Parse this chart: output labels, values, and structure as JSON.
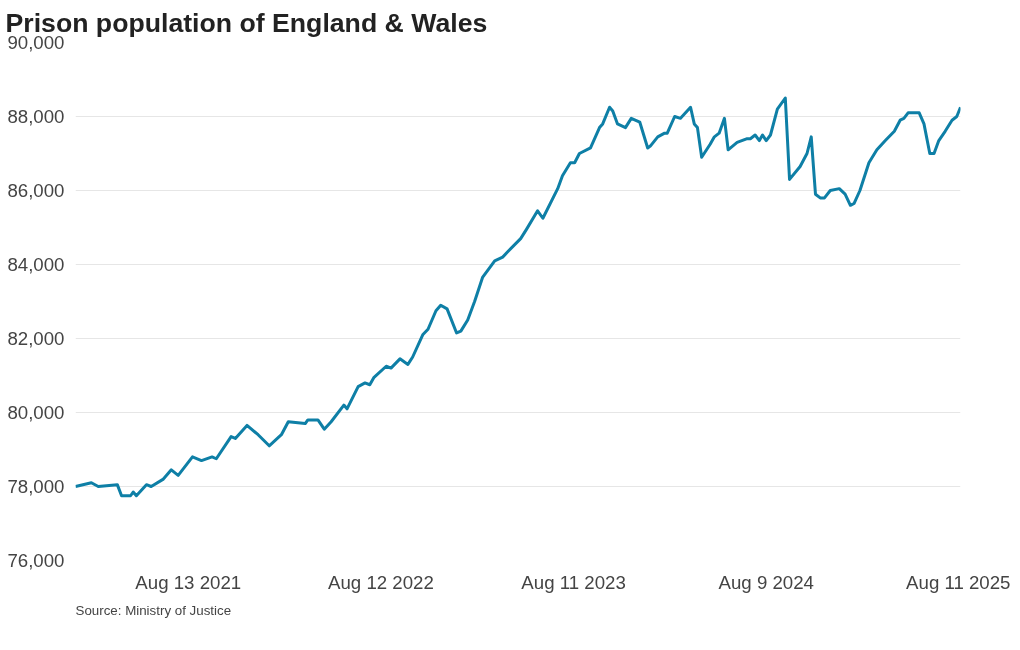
{
  "chart_data": {
    "type": "line",
    "title": "Prison population of England & Wales",
    "annotations": [
      "Source: Ministry of Justice"
    ],
    "x": [
      "2021-01-12",
      "2021-02-11",
      "2021-02-24",
      "2021-04-01",
      "2021-04-09",
      "2021-04-26",
      "2021-05-01",
      "2021-05-07",
      "2021-05-26",
      "2021-06-04",
      "2021-06-27",
      "2021-07-12",
      "2021-07-25",
      "2021-08-21",
      "2021-09-07",
      "2021-09-27",
      "2021-10-05",
      "2021-11-02",
      "2021-11-10",
      "2021-12-02",
      "2021-12-23",
      "2022-01-13",
      "2022-02-05",
      "2022-02-18",
      "2022-03-22",
      "2022-03-27",
      "2022-04-15",
      "2022-04-27",
      "2022-05-10",
      "2022-06-03",
      "2022-06-09",
      "2022-06-30",
      "2022-07-13",
      "2022-07-22",
      "2022-07-30",
      "2022-08-22",
      "2022-08-31",
      "2022-09-17",
      "2022-10-02",
      "2022-10-11",
      "2022-10-30",
      "2022-11-09",
      "2022-11-24",
      "2022-12-03",
      "2022-12-15",
      "2023-01-02",
      "2023-01-10",
      "2023-01-23",
      "2023-02-05",
      "2023-02-20",
      "2023-03-15",
      "2023-03-30",
      "2023-04-09",
      "2023-05-03",
      "2023-05-14",
      "2023-06-04",
      "2023-06-14",
      "2023-07-12",
      "2023-07-21",
      "2023-08-05",
      "2023-08-13",
      "2023-08-22",
      "2023-09-12",
      "2023-09-29",
      "2023-10-05",
      "2023-10-18",
      "2023-10-24",
      "2023-11-02",
      "2023-11-17",
      "2023-11-28",
      "2023-12-14",
      "2023-12-29",
      "2024-01-03",
      "2024-01-17",
      "2024-01-30",
      "2024-02-04",
      "2024-02-18",
      "2024-02-29",
      "2024-03-19",
      "2024-03-26",
      "2024-04-01",
      "2024-04-09",
      "2024-04-25",
      "2024-05-03",
      "2024-05-12",
      "2024-05-22",
      "2024-05-29",
      "2024-06-15",
      "2024-07-04",
      "2024-07-10",
      "2024-07-19",
      "2024-07-27",
      "2024-08-02",
      "2024-08-09",
      "2024-08-17",
      "2024-08-30",
      "2024-09-14",
      "2024-09-22",
      "2024-10-12",
      "2024-10-25",
      "2024-11-02",
      "2024-11-10",
      "2024-11-19",
      "2024-11-27",
      "2024-12-08",
      "2024-12-25",
      "2025-01-05",
      "2025-01-15",
      "2025-01-22",
      "2025-02-02",
      "2025-02-19",
      "2025-03-06",
      "2025-03-22",
      "2025-04-08",
      "2025-04-19",
      "2025-04-26",
      "2025-05-04",
      "2025-05-25",
      "2025-06-03",
      "2025-06-14",
      "2025-06-22",
      "2025-07-01",
      "2025-07-13",
      "2025-07-26",
      "2025-08-04",
      "2025-08-11"
    ],
    "series": [
      {
        "color": "#0e7fa6",
        "values": [
          78000,
          78100,
          78000,
          78050,
          77750,
          77750,
          77850,
          77750,
          78050,
          78000,
          78200,
          78450,
          78300,
          78800,
          78700,
          78800,
          78750,
          79350,
          79300,
          79650,
          79400,
          79100,
          79400,
          79750,
          79700,
          79800,
          79800,
          79550,
          79750,
          80200,
          80100,
          80700,
          80800,
          80750,
          80950,
          81250,
          81200,
          81450,
          81300,
          81500,
          82100,
          82250,
          82750,
          82900,
          82800,
          82150,
          82200,
          82500,
          83000,
          83650,
          84100,
          84200,
          84350,
          84700,
          84950,
          85450,
          85250,
          86050,
          86400,
          86750,
          86750,
          87000,
          87150,
          87700,
          87800,
          88250,
          88150,
          87800,
          87700,
          87950,
          87850,
          87150,
          87200,
          87450,
          87550,
          87550,
          88000,
          87950,
          88250,
          87800,
          87700,
          86900,
          87250,
          87450,
          87550,
          87950,
          87100,
          87300,
          87400,
          87400,
          87500,
          87350,
          87500,
          87350,
          87500,
          88200,
          88500,
          86300,
          86650,
          87000,
          87450,
          85900,
          85800,
          85800,
          86000,
          86050,
          85900,
          85600,
          85650,
          86000,
          86750,
          87100,
          87350,
          87600,
          87900,
          87950,
          88100,
          88100,
          87800,
          87000,
          87000,
          87350,
          87600,
          87900,
          88000,
          88250
        ]
      }
    ],
    "xlim": [
      "2021-01-12",
      "2025-08-11"
    ],
    "xticks": [
      {
        "value": "2021-08-13",
        "label": "Aug 13 2021"
      },
      {
        "value": "2022-08-12",
        "label": "Aug 12 2022"
      },
      {
        "value": "2023-08-11",
        "label": "Aug 11 2023"
      },
      {
        "value": "2024-08-09",
        "label": "Aug 9 2024"
      },
      {
        "value": "2025-08-11",
        "label": "Aug 11 2025"
      }
    ],
    "ylim": [
      76000,
      90000
    ],
    "yticks": [
      {
        "value": 76000,
        "label": "76,000"
      },
      {
        "value": 78000,
        "label": "78,000"
      },
      {
        "value": 80000,
        "label": "80,000"
      },
      {
        "value": 82000,
        "label": "82,000"
      },
      {
        "value": 84000,
        "label": "84,000"
      },
      {
        "value": 86000,
        "label": "86,000"
      },
      {
        "value": 88000,
        "label": "88,000"
      },
      {
        "value": 90000,
        "label": "90,000"
      }
    ],
    "grid": "y",
    "marker": "none",
    "line_style": "solid"
  }
}
